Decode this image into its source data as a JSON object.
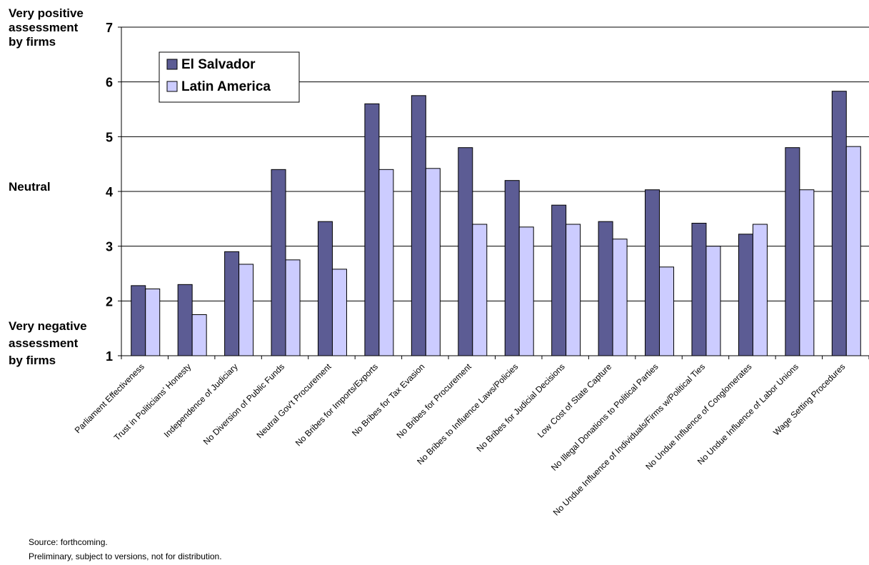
{
  "chart_data": {
    "type": "bar",
    "ylim": [
      1,
      7
    ],
    "yticks": [
      1,
      2,
      3,
      4,
      5,
      6,
      7
    ],
    "grid": true,
    "legend_position": "top-left",
    "side_labels": {
      "top": [
        "Very positive",
        "assessment",
        "by firms"
      ],
      "middle": "Neutral",
      "bottom": [
        "Very negative",
        "assessment",
        "by firms"
      ]
    },
    "colors": {
      "El Salvador": "#5c5c94",
      "Latin America": "#ccccff"
    },
    "categories": [
      "Parliament Effectiveness",
      "Trust in Politicians' Honesty",
      "Independence of Judiciary",
      "No Diversion of Public Funds",
      "Neutral Gov't Procurement",
      "No Bribes for Imports/Exports",
      "No Bribes for Tax Evasion",
      "No Bribes for Procurement",
      "No Bribes to Influence Laws/Policies",
      "No Bribes for Judicial Decisions",
      "Low Cost of State Capture",
      "No Illegal Donations to Political Parties",
      "No Undue Influence of Individuals/Firms w/Political Ties",
      "No Undue Influence of Conglomerates",
      "No Undue Influence of Labor Unions",
      "Wage Setting Procedures"
    ],
    "series": [
      {
        "name": "El Salvador",
        "values": [
          2.28,
          2.3,
          2.9,
          4.4,
          3.45,
          5.6,
          5.75,
          4.8,
          4.2,
          3.75,
          3.45,
          4.03,
          3.42,
          3.22,
          4.8,
          5.83
        ]
      },
      {
        "name": "Latin America",
        "values": [
          2.22,
          1.75,
          2.67,
          2.75,
          2.58,
          4.4,
          4.42,
          3.4,
          3.35,
          3.4,
          3.13,
          2.62,
          3.0,
          3.4,
          4.03,
          4.82
        ]
      }
    ]
  },
  "notes": {
    "source": "Source: forthcoming.",
    "preliminary": "Preliminary, subject to versions, not for distribution."
  }
}
